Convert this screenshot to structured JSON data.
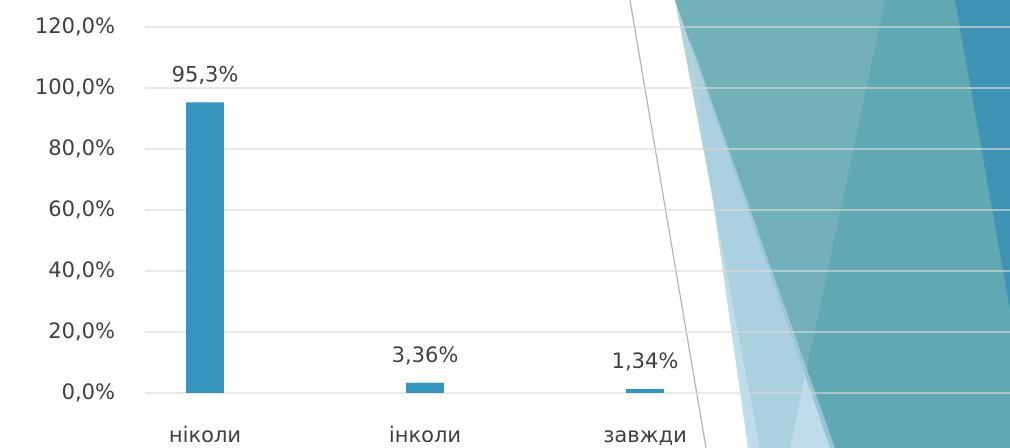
{
  "chart_data": {
    "type": "bar",
    "categories": [
      "ніколи",
      "інколи",
      "завжди"
    ],
    "values": [
      95.3,
      3.36,
      1.34
    ],
    "value_labels": [
      "95,3%",
      "3,36%",
      "1,34%"
    ],
    "color": "#3595bf",
    "ylim": [
      0,
      120
    ],
    "yticks": [
      {
        "value": 0,
        "label": "0,0%"
      },
      {
        "value": 20,
        "label": "20,0%"
      },
      {
        "value": 40,
        "label": "40,0%"
      },
      {
        "value": 60,
        "label": "60,0%"
      },
      {
        "value": 80,
        "label": "80,0%"
      },
      {
        "value": 100,
        "label": "100,0%"
      },
      {
        "value": 120,
        "label": "120,0%"
      }
    ],
    "grid": true
  }
}
